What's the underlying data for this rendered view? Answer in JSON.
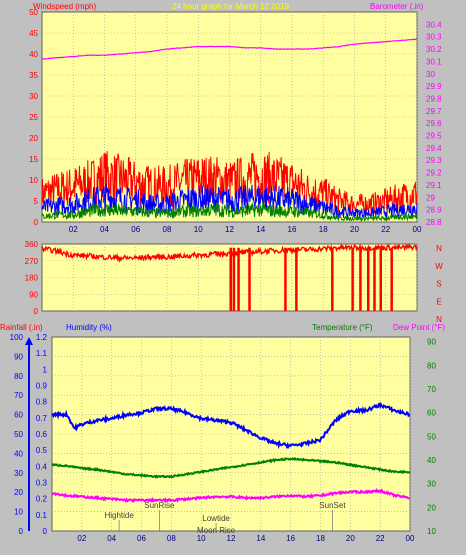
{
  "colors": {
    "background": "#c0c0c0",
    "plot_bg": "#ffffa0",
    "grid": "#a0a0a0",
    "wind": "#ff0000",
    "avg_wind": "#0000ff",
    "gust": "#008000",
    "barometer": "#ff00ff",
    "direction": "#ff0000",
    "humidity": "#0000ff",
    "temperature": "#008000",
    "dewpoint": "#ff00ff",
    "rain": "#0000ff",
    "title_yellow": "#ffff00"
  },
  "chart_data": [
    {
      "type": "line",
      "title": "24 hour graph for   March 12 2019",
      "left_axis_label": "Windspeed (mph)",
      "right_axis_label": "Barometer (.in)",
      "x_ticks": [
        "02",
        "04",
        "06",
        "08",
        "10",
        "12",
        "14",
        "16",
        "18",
        "20",
        "22",
        "00"
      ],
      "x_range": [
        0,
        24
      ],
      "ylim_left": [
        0,
        50
      ],
      "left_ticks": [
        "0",
        "5",
        "10",
        "15",
        "20",
        "25",
        "30",
        "35",
        "40",
        "45",
        "50"
      ],
      "ylim_right": [
        28.8,
        30.5
      ],
      "right_ticks": [
        "28.8",
        "28.9",
        "29",
        "29.1",
        "29.2",
        "29.3",
        "29.4",
        "29.5",
        "29.6",
        "29.7",
        "29.8",
        "29.9",
        "30",
        "30.1",
        "30.2",
        "30.3",
        "30.4"
      ],
      "series": [
        {
          "key": "barometer",
          "axis": "right",
          "x": [
            0,
            1,
            2,
            3,
            4,
            5,
            6,
            7,
            8,
            9,
            10,
            11,
            12,
            13,
            14,
            15,
            16,
            17,
            18,
            19,
            20,
            21,
            22,
            23,
            24
          ],
          "values": [
            30.12,
            30.13,
            30.14,
            30.15,
            30.15,
            30.16,
            30.17,
            30.18,
            30.2,
            30.21,
            30.22,
            30.22,
            30.22,
            30.21,
            30.21,
            30.2,
            30.2,
            30.2,
            30.21,
            30.22,
            30.24,
            30.25,
            30.26,
            30.27,
            30.28
          ]
        },
        {
          "key": "wind_max",
          "axis": "left",
          "x": [
            0,
            1,
            2,
            3,
            4,
            5,
            6,
            7,
            8,
            9,
            10,
            11,
            12,
            13,
            14,
            15,
            16,
            17,
            18,
            19,
            20,
            21,
            22,
            23,
            24
          ],
          "values": [
            8,
            9,
            10,
            11,
            13,
            12,
            11,
            10,
            10,
            11,
            12,
            12,
            11,
            12,
            13,
            12,
            11,
            9,
            8,
            6,
            5,
            5,
            6,
            7,
            8
          ]
        },
        {
          "key": "wind_avg",
          "axis": "left",
          "x": [
            0,
            1,
            2,
            3,
            4,
            5,
            6,
            7,
            8,
            9,
            10,
            11,
            12,
            13,
            14,
            15,
            16,
            17,
            18,
            19,
            20,
            21,
            22,
            23,
            24
          ],
          "values": [
            4,
            4.5,
            5,
            6,
            7,
            6.5,
            6,
            5,
            5,
            6,
            6.5,
            6.5,
            6,
            6.5,
            7,
            6.5,
            6,
            5,
            4,
            3,
            2.5,
            2.5,
            3,
            3.5,
            4
          ]
        },
        {
          "key": "gust",
          "axis": "left",
          "x": [
            0,
            1,
            2,
            3,
            4,
            5,
            6,
            7,
            8,
            9,
            10,
            11,
            12,
            13,
            14,
            15,
            16,
            17,
            18,
            19,
            20,
            21,
            22,
            23,
            24
          ],
          "values": [
            1.5,
            2,
            2,
            3,
            3.5,
            3,
            3,
            2.5,
            2.5,
            3,
            3,
            3.5,
            3,
            3,
            3.5,
            3,
            3,
            2.5,
            2,
            1,
            1,
            1,
            1,
            1.5,
            1.5
          ]
        }
      ]
    },
    {
      "type": "line",
      "title": "",
      "left_ticks": [
        "0",
        "90",
        "180",
        "270",
        "360"
      ],
      "ylim": [
        0,
        360
      ],
      "compass": [
        "N",
        "W",
        "S",
        "E",
        "N"
      ],
      "series": [
        {
          "key": "direction",
          "x": [
            0,
            1,
            2,
            3,
            4,
            5,
            6,
            7,
            8,
            9,
            10,
            11,
            12,
            13,
            14,
            15,
            16,
            17,
            18,
            19,
            20,
            21,
            22,
            23,
            24
          ],
          "values": [
            335,
            320,
            300,
            295,
            290,
            285,
            285,
            290,
            290,
            295,
            300,
            305,
            310,
            315,
            320,
            325,
            330,
            330,
            335,
            340,
            340,
            340,
            340,
            340,
            345
          ]
        }
      ],
      "north_dips_hours": [
        12,
        12.2,
        12.5,
        13.2,
        15.5,
        16.2,
        18.5,
        19.8,
        20.3,
        20.8,
        21.2,
        21.6,
        22.3
      ]
    },
    {
      "type": "line",
      "title": "",
      "rainfall_label": "Rainfall (.in)",
      "humidity_label": "Humidity (%)",
      "temperature_label": "Temperature (°F)",
      "dewpoint_label": "Dew Point (°F)",
      "humidity_ticks": [
        "0",
        "10",
        "20",
        "30",
        "40",
        "50",
        "60",
        "70",
        "80",
        "90",
        "100"
      ],
      "ylim_humidity": [
        0,
        100
      ],
      "rain_ticks": [
        "0",
        "0.1",
        "0.2",
        "0.3",
        "0.4",
        "0.5",
        "0.6",
        "0.7",
        "0.8",
        "0.9",
        "1",
        "1.1",
        "1.2"
      ],
      "ylim_rain": [
        0,
        1.2
      ],
      "temp_ticks": [
        "10",
        "20",
        "30",
        "40",
        "50",
        "60",
        "70",
        "80",
        "90"
      ],
      "ylim_temp": [
        10,
        92
      ],
      "annotations": [
        {
          "label": "Hightide",
          "hour": 4.5
        },
        {
          "label": "SunRise",
          "hour": 7.2
        },
        {
          "label": "Lowtide",
          "hour": 11
        },
        {
          "label": "Moon Rise",
          "hour": 11
        },
        {
          "label": "SunSet",
          "hour": 18.8
        }
      ],
      "series": [
        {
          "key": "humidity",
          "axis": "humidity",
          "x": [
            0,
            1,
            1.5,
            2,
            3,
            4,
            5,
            6,
            7,
            8,
            9,
            10,
            11,
            12,
            13,
            14,
            15,
            16,
            17,
            18,
            19,
            20,
            21,
            22,
            23,
            24
          ],
          "values": [
            60,
            60,
            53,
            55,
            57,
            58,
            60,
            61,
            63,
            63,
            61,
            58,
            57,
            56,
            52,
            48,
            45,
            44,
            45,
            47,
            57,
            62,
            62,
            65,
            62,
            60
          ]
        },
        {
          "key": "temperature",
          "axis": "temp",
          "x": [
            0,
            1,
            2,
            3,
            4,
            5,
            6,
            7,
            8,
            9,
            10,
            11,
            12,
            13,
            14,
            15,
            16,
            17,
            18,
            19,
            20,
            21,
            22,
            23,
            24
          ],
          "values": [
            38,
            37.5,
            36.5,
            36,
            35,
            34,
            33.5,
            33,
            33,
            34,
            35,
            36,
            37,
            38,
            39,
            40,
            40.5,
            40,
            39.5,
            39,
            38,
            37,
            36,
            35,
            35
          ]
        },
        {
          "key": "dewpoint",
          "axis": "temp",
          "x": [
            0,
            1,
            2,
            3,
            4,
            5,
            6,
            7,
            8,
            9,
            10,
            11,
            12,
            13,
            14,
            15,
            16,
            17,
            18,
            19,
            20,
            21,
            22,
            23,
            24
          ],
          "values": [
            26,
            25,
            24.5,
            24,
            23.5,
            23,
            23,
            23,
            23,
            23.5,
            24,
            24.5,
            24.5,
            24,
            24,
            24.5,
            25,
            24.5,
            25,
            26,
            26.5,
            26.5,
            27,
            25,
            24
          ]
        }
      ]
    }
  ]
}
